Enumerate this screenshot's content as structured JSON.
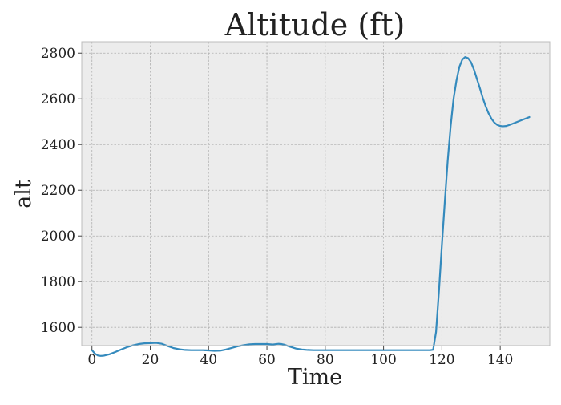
{
  "chart_data": {
    "type": "line",
    "title": "Altitude (ft)",
    "xlabel": "Time",
    "ylabel": "alt",
    "xlim": [
      -3.5,
      157
    ],
    "ylim": [
      1520,
      2850
    ],
    "xticks": [
      0,
      20,
      40,
      60,
      80,
      100,
      120,
      140
    ],
    "yticks": [
      1600,
      1800,
      2000,
      2200,
      2400,
      2600,
      2800
    ],
    "grid": true,
    "background": "#ececec",
    "series": [
      {
        "color": "#348abd",
        "x": [
          0,
          1,
          2,
          3,
          4,
          6,
          8,
          10,
          12,
          14,
          16,
          18,
          20,
          22,
          24,
          26,
          28,
          30,
          32,
          34,
          36,
          38,
          40,
          42,
          44,
          46,
          48,
          50,
          52,
          54,
          56,
          58,
          60,
          62,
          64,
          65,
          66,
          68,
          70,
          72,
          74,
          76,
          78,
          80,
          90,
          100,
          110,
          115,
          116,
          117,
          118,
          119,
          120,
          121,
          122,
          123,
          124,
          125,
          126,
          127,
          128,
          129,
          130,
          131,
          132,
          133,
          134,
          135,
          136,
          137,
          138,
          139,
          140,
          141,
          142,
          143,
          144,
          146,
          148,
          150
        ],
        "y": [
          1500,
          1485,
          1477,
          1475,
          1476,
          1482,
          1492,
          1503,
          1513,
          1521,
          1527,
          1530,
          1531,
          1532,
          1528,
          1518,
          1509,
          1504,
          1501,
          1500,
          1500,
          1500,
          1499,
          1497,
          1498,
          1503,
          1510,
          1517,
          1522,
          1526,
          1527,
          1527,
          1527,
          1525,
          1528,
          1527,
          1524,
          1515,
          1507,
          1503,
          1501,
          1500,
          1500,
          1500,
          1500,
          1500,
          1500,
          1500,
          1500,
          1502,
          1580,
          1760,
          1960,
          2150,
          2330,
          2480,
          2600,
          2680,
          2740,
          2772,
          2783,
          2778,
          2760,
          2728,
          2688,
          2648,
          2605,
          2568,
          2537,
          2513,
          2496,
          2486,
          2481,
          2480,
          2481,
          2485,
          2490,
          2500,
          2510,
          2520
        ]
      }
    ]
  }
}
